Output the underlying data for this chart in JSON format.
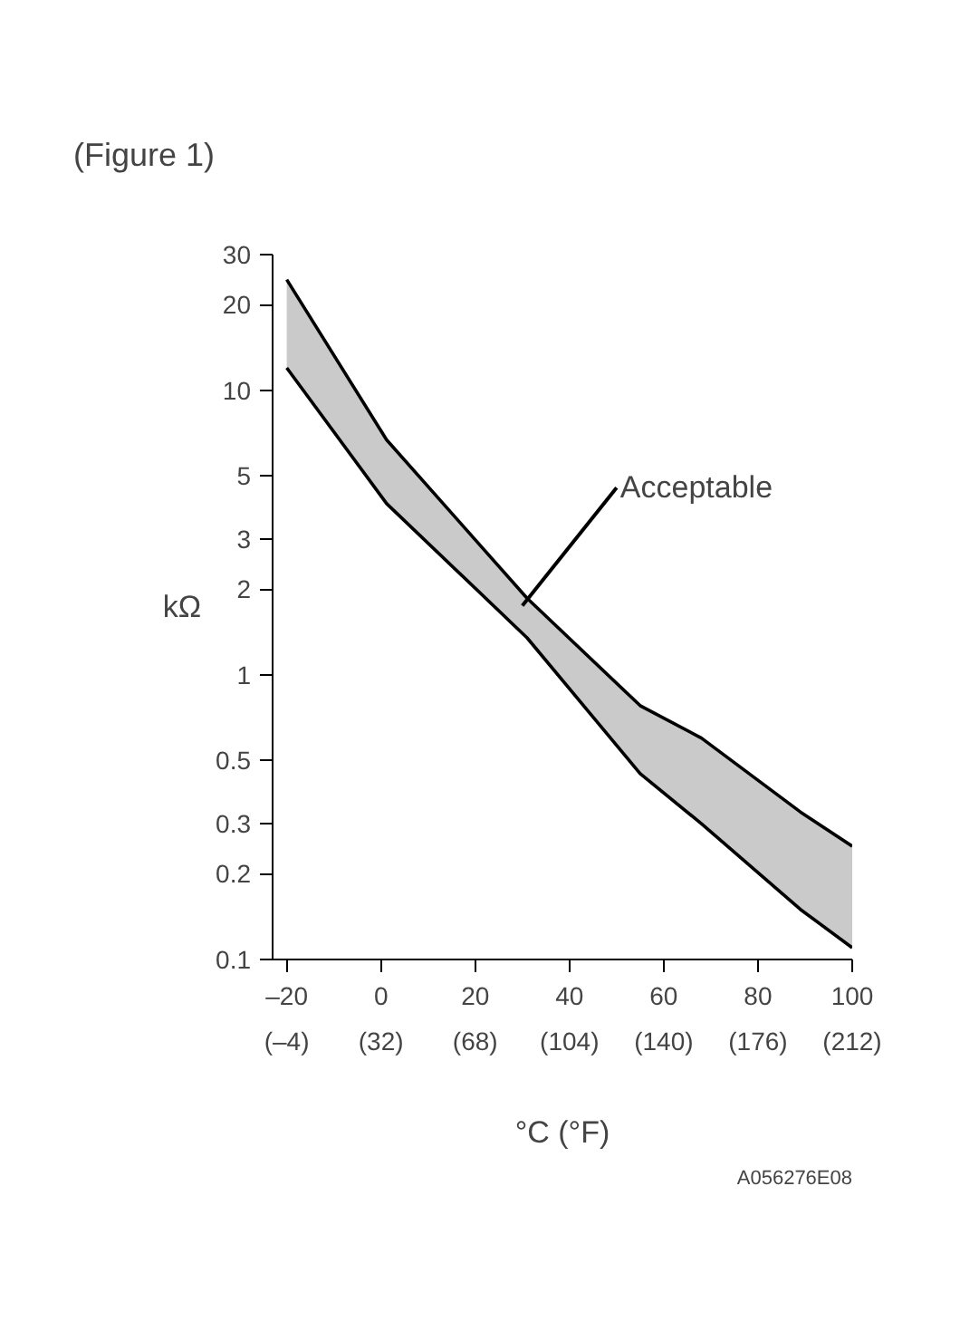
{
  "chart_data": {
    "type": "area",
    "title": "(Figure 1)",
    "xlabel": "°C (°F)",
    "ylabel": "kΩ",
    "x": [
      -20,
      1.2,
      31,
      55,
      68,
      89,
      100
    ],
    "series": [
      {
        "color": "#000000",
        "values": [
          24.5,
          6.7,
          1.86,
          0.78,
          0.6,
          0.33,
          0.25
        ]
      },
      {
        "type": "line",
        "color": "#000000",
        "values": [
          12,
          4.0,
          1.35,
          0.45,
          0.3,
          0.15,
          0.11
        ]
      }
    ],
    "log": "y",
    "xlim": [
      -23,
      100
    ],
    "ylim": [
      0.1,
      30
    ],
    "xticks": [
      {
        "value": -20,
        "label": "–20"
      },
      0,
      20,
      40,
      60,
      80,
      100
    ],
    "x2lim": [
      -9.4,
      212
    ],
    "x2ticks": [
      {
        "value": -4,
        "label": "(–4)"
      },
      {
        "value": 32,
        "label": "(32)"
      },
      {
        "value": 68,
        "label": "(68)"
      },
      {
        "value": 104,
        "label": "(104)"
      },
      {
        "value": 140,
        "label": "(140)"
      },
      {
        "value": 176,
        "label": "(176)"
      },
      {
        "value": 212,
        "label": "(212)"
      }
    ],
    "yticks": [
      0.1,
      0.2,
      0.3,
      0.5,
      1,
      2,
      3,
      5,
      10,
      20,
      30
    ],
    "grid": false,
    "annotations": [
      {
        "text": "Acceptable",
        "x": 30,
        "y": 1.75
      },
      "A056276E08"
    ]
  }
}
